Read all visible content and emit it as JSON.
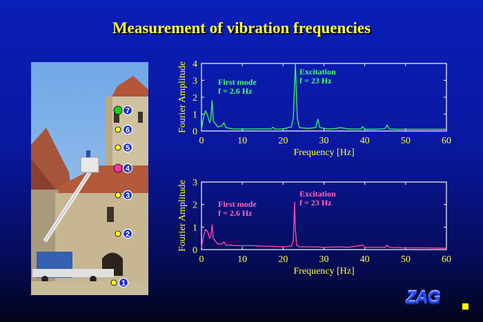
{
  "title": "Measurement of vibration frequencies",
  "photo": {
    "markers": [
      {
        "label": "7",
        "color": "#22cc22"
      },
      {
        "label": "6",
        "color": "#ffff33"
      },
      {
        "label": "5",
        "color": "#ffff33"
      },
      {
        "label": "4",
        "color": "#ff33aa"
      },
      {
        "label": "3",
        "color": "#ffff33"
      },
      {
        "label": "2",
        "color": "#ffff33"
      },
      {
        "label": "1",
        "color": "#ffff33"
      }
    ]
  },
  "logo": {
    "text": "ZAG",
    "dot_color": "#ffff00"
  },
  "chart_data": [
    {
      "type": "line",
      "color": "#33ee66",
      "label_color": "#44ff66",
      "xlabel": "Frequency [Hz]",
      "ylabel": "Fourier Amplitude",
      "xlim": [
        0,
        60
      ],
      "ylim": [
        0,
        4
      ],
      "xticks": [
        0,
        10,
        20,
        30,
        40,
        50,
        60
      ],
      "yticks": [
        0,
        1,
        2,
        3,
        4
      ],
      "annotations": [
        {
          "line1": "First mode",
          "line2": "f = 2.6 Hz",
          "x": 2.6
        },
        {
          "line1": "Excitation",
          "line2": "f = 23 Hz",
          "x": 23
        }
      ],
      "x": [
        0,
        0.5,
        1,
        1.5,
        2,
        2.3,
        2.6,
        2.9,
        3.5,
        4,
        5,
        5.5,
        6,
        7,
        8,
        10,
        12,
        15,
        17,
        17.5,
        18,
        20,
        22,
        22.5,
        23,
        23.5,
        24,
        26,
        28,
        28.5,
        29,
        31,
        33,
        34,
        36,
        39,
        39.5,
        40,
        42,
        44,
        45,
        45.5,
        46,
        48,
        50,
        52,
        55,
        58,
        60
      ],
      "y": [
        0.1,
        0.8,
        1.2,
        0.9,
        0.5,
        0.7,
        1.8,
        0.6,
        0.4,
        0.25,
        0.3,
        0.5,
        0.2,
        0.15,
        0.12,
        0.12,
        0.12,
        0.13,
        0.12,
        0.22,
        0.12,
        0.12,
        0.25,
        0.8,
        4.0,
        0.7,
        0.2,
        0.15,
        0.2,
        0.7,
        0.2,
        0.12,
        0.15,
        0.2,
        0.12,
        0.12,
        0.25,
        0.1,
        0.1,
        0.12,
        0.15,
        0.35,
        0.12,
        0.1,
        0.1,
        0.1,
        0.1,
        0.1,
        0.1
      ]
    },
    {
      "type": "line",
      "color": "#ff44aa",
      "label_color": "#ff66bb",
      "xlabel": "Frequency [Hz]",
      "ylabel": "Fourier Amplitude",
      "xlim": [
        0,
        60
      ],
      "ylim": [
        0,
        3
      ],
      "xticks": [
        0,
        10,
        20,
        30,
        40,
        50,
        60
      ],
      "yticks": [
        0,
        1,
        2,
        3
      ],
      "annotations": [
        {
          "line1": "First mode",
          "line2": "f = 2.6 Hz",
          "x": 2.6
        },
        {
          "line1": "Excitation",
          "line2": "f = 23 Hz",
          "x": 23
        }
      ],
      "x": [
        0,
        0.5,
        1,
        1.5,
        2,
        2.3,
        2.6,
        2.9,
        3.5,
        4,
        5,
        5.5,
        6,
        7,
        8,
        10,
        12,
        15,
        18,
        20,
        22,
        22.5,
        22.8,
        23,
        23.3,
        24,
        26,
        28,
        30,
        34,
        36,
        39.5,
        40,
        42,
        45,
        45.4,
        46,
        50,
        55,
        60
      ],
      "y": [
        0.1,
        0.6,
        0.9,
        0.8,
        0.5,
        0.6,
        1.1,
        0.5,
        0.35,
        0.25,
        0.25,
        0.35,
        0.2,
        0.2,
        0.18,
        0.17,
        0.18,
        0.15,
        0.14,
        0.12,
        0.15,
        0.4,
        2.1,
        0.9,
        0.2,
        0.12,
        0.12,
        0.12,
        0.1,
        0.12,
        0.1,
        0.2,
        0.1,
        0.1,
        0.1,
        0.2,
        0.1,
        0.08,
        0.08,
        0.06
      ]
    }
  ]
}
